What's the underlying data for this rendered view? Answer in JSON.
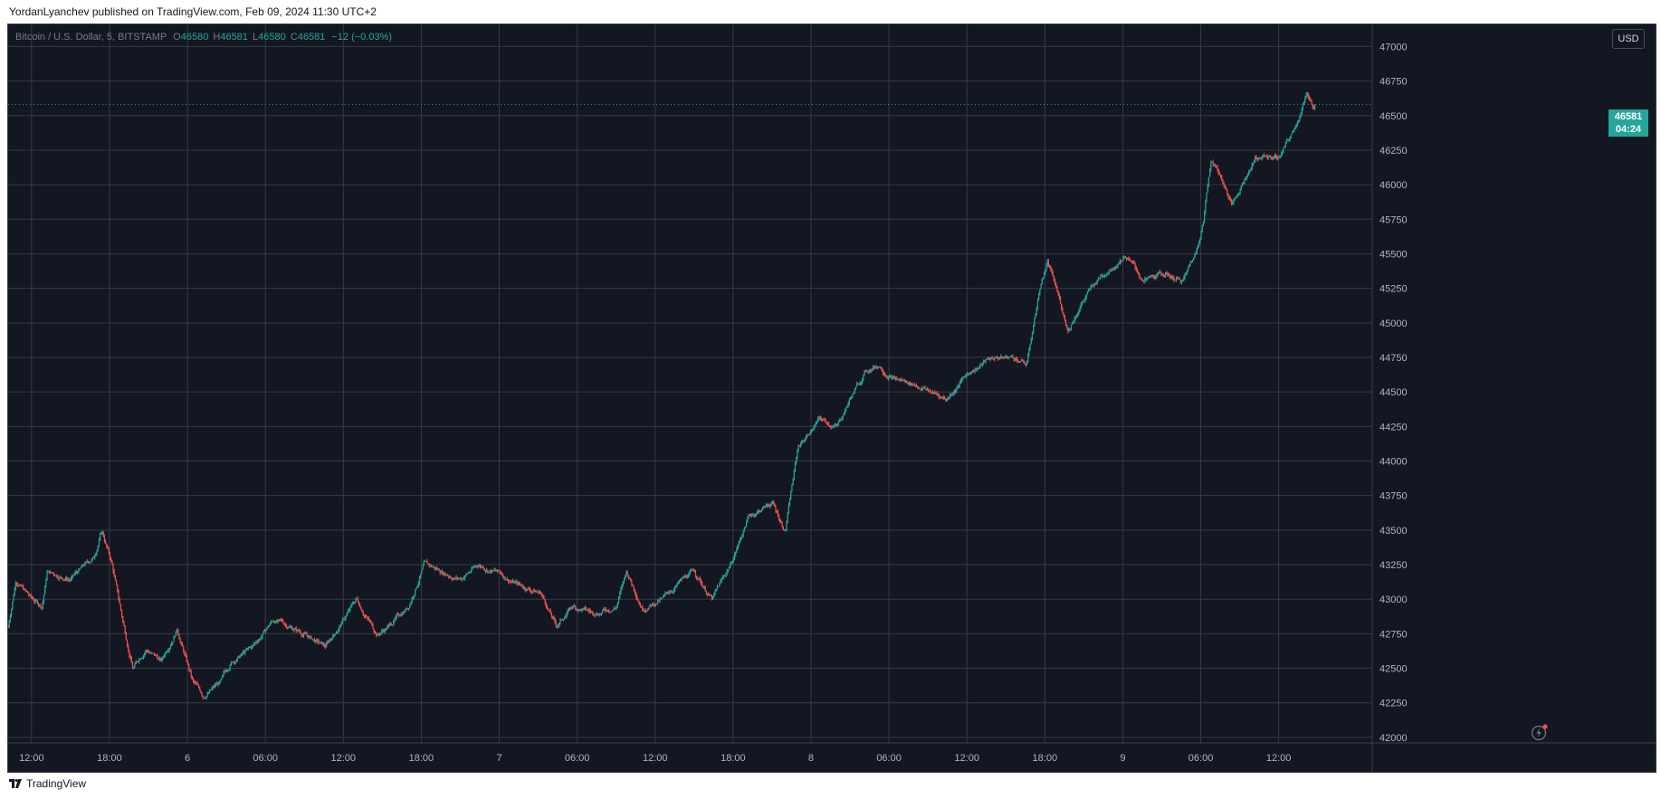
{
  "header": {
    "publisher": "YordanLyanchev published on TradingView.com, Feb 09, 2024 11:30 UTC+2"
  },
  "legend": {
    "symbol": "Bitcoin / U.S. Dollar, 5, BITSTAMP",
    "o_label": "O",
    "o_value": "46580",
    "h_label": "H",
    "h_value": "46581",
    "l_label": "L",
    "l_value": "46580",
    "c_label": "C",
    "c_value": "46581",
    "change": "−12 (−0.03%)"
  },
  "price_axis": {
    "currency": "USD",
    "last_price": "46581",
    "countdown": "04:24"
  },
  "footer": {
    "brand": "TradingView"
  },
  "colors": {
    "background": "#131722",
    "up": "#26a69a",
    "down": "#ef5350",
    "grid": "#363a45",
    "axis_text": "#b2b5be"
  },
  "icons": {
    "replay": "bolt-icon",
    "logo": "tradingview-logo-icon"
  },
  "chart_data": {
    "type": "candlestick",
    "interval": "5",
    "grid": true,
    "last_price": 46581,
    "ylim": [
      41960,
      47160
    ],
    "y_ticks": [
      42000,
      42250,
      42500,
      42750,
      43000,
      43250,
      43500,
      43750,
      44000,
      44250,
      44500,
      44750,
      45000,
      45250,
      45500,
      45750,
      46000,
      46250,
      46500,
      46750,
      47000
    ],
    "x_ticks": [
      "12:00",
      "18:00",
      "6",
      "06:00",
      "12:00",
      "18:00",
      "7",
      "06:00",
      "12:00",
      "18:00",
      "8",
      "06:00",
      "12:00",
      "18:00",
      "9",
      "06:00",
      "12:00"
    ],
    "x_tick_hours": [
      0,
      6,
      12,
      18,
      24,
      30,
      36,
      42,
      48,
      54,
      60,
      66,
      72,
      78,
      84,
      90,
      96
    ],
    "x_range_hours": [
      -1.8,
      103.2
    ],
    "bar_minutes": 5,
    "path": [
      [
        -1.8,
        42800
      ],
      [
        -1.2,
        43150
      ],
      [
        0,
        43000
      ],
      [
        0.8,
        42950
      ],
      [
        1.2,
        43200
      ],
      [
        3,
        43150
      ],
      [
        4.8,
        43300
      ],
      [
        5.4,
        43500
      ],
      [
        6.2,
        43250
      ],
      [
        7,
        42850
      ],
      [
        7.8,
        42500
      ],
      [
        8.8,
        42650
      ],
      [
        10,
        42550
      ],
      [
        11.2,
        42800
      ],
      [
        12.4,
        42400
      ],
      [
        13.2,
        42300
      ],
      [
        14.6,
        42400
      ],
      [
        15.4,
        42550
      ],
      [
        17,
        42650
      ],
      [
        18.6,
        42850
      ],
      [
        20,
        42800
      ],
      [
        21,
        42750
      ],
      [
        22.6,
        42650
      ],
      [
        24,
        42850
      ],
      [
        25,
        43000
      ],
      [
        26.6,
        42750
      ],
      [
        27.4,
        42800
      ],
      [
        29,
        42950
      ],
      [
        30.2,
        43250
      ],
      [
        31.6,
        43200
      ],
      [
        33,
        43150
      ],
      [
        34.4,
        43250
      ],
      [
        35.8,
        43200
      ],
      [
        37.6,
        43100
      ],
      [
        39.2,
        43050
      ],
      [
        40.4,
        42800
      ],
      [
        41.6,
        42950
      ],
      [
        43.2,
        42900
      ],
      [
        45,
        42950
      ],
      [
        45.8,
        43200
      ],
      [
        47,
        42950
      ],
      [
        48.6,
        43000
      ],
      [
        49.6,
        43100
      ],
      [
        51,
        43200
      ],
      [
        52.4,
        43000
      ],
      [
        53.8,
        43250
      ],
      [
        55.2,
        43600
      ],
      [
        57,
        43700
      ],
      [
        58,
        43500
      ],
      [
        59,
        44100
      ],
      [
        60.6,
        44300
      ],
      [
        62,
        44250
      ],
      [
        63,
        44450
      ],
      [
        64.2,
        44650
      ],
      [
        65.2,
        44700
      ],
      [
        66.4,
        44600
      ],
      [
        68.2,
        44550
      ],
      [
        70.4,
        44450
      ],
      [
        72.2,
        44650
      ],
      [
        74,
        44750
      ],
      [
        75.6,
        44750
      ],
      [
        76.6,
        44700
      ],
      [
        77.6,
        45250
      ],
      [
        78.2,
        45450
      ],
      [
        79,
        45200
      ],
      [
        79.8,
        44950
      ],
      [
        80.8,
        45150
      ],
      [
        82.4,
        45350
      ],
      [
        84.2,
        45500
      ],
      [
        85.6,
        45300
      ],
      [
        87.4,
        45350
      ],
      [
        88.6,
        45300
      ],
      [
        89.6,
        45500
      ],
      [
        90.2,
        45750
      ],
      [
        90.8,
        46200
      ],
      [
        91.6,
        46050
      ],
      [
        92.4,
        45850
      ],
      [
        93.4,
        46050
      ],
      [
        94.2,
        46200
      ],
      [
        96,
        46200
      ],
      [
        97,
        46350
      ],
      [
        98.2,
        46650
      ],
      [
        98.8,
        46550
      ]
    ]
  }
}
